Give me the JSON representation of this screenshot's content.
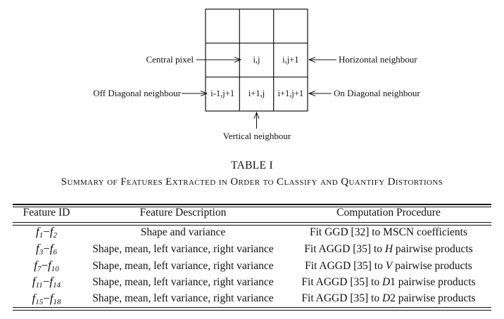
{
  "diagram": {
    "cells": {
      "center": "i,j",
      "horizontal": "i,j+1",
      "off_diagonal": "i-1,j+1",
      "vertical": "i+1,j",
      "on_diagonal": "i+1,j+1"
    },
    "labels": {
      "central_pixel": "Central pixel",
      "horizontal_neighbour": "Horizontal neighbour",
      "off_diagonal_neighbour": "Off Diagonal neighbour",
      "on_diagonal_neighbour": "On Diagonal neighbour",
      "vertical_neighbour": "Vertical neighbour"
    }
  },
  "table": {
    "number": "TABLE I",
    "caption": "Summary of Features Extracted in Order to Classify and Quantify Distortions",
    "headers": [
      "Feature ID",
      "Feature Description",
      "Computation Procedure"
    ],
    "rows": [
      {
        "id": {
          "a": "f",
          "a_sub": "1",
          "sep": "−",
          "b": "f",
          "b_sub": "2"
        },
        "description": "Shape and variance",
        "procedure": {
          "pre": "Fit GGD [32] to MSCN coefficients",
          "var": "",
          "post": ""
        }
      },
      {
        "id": {
          "a": "f",
          "a_sub": "3",
          "sep": "−",
          "b": "f",
          "b_sub": "6"
        },
        "description": "Shape, mean, left variance, right variance",
        "procedure": {
          "pre": "Fit AGGD [35] to ",
          "var": "H",
          "post": " pairwise products"
        }
      },
      {
        "id": {
          "a": "f",
          "a_sub": "7",
          "sep": "−",
          "b": "f",
          "b_sub": "10"
        },
        "description": "Shape, mean, left variance, right variance",
        "procedure": {
          "pre": "Fit AGGD [35] to ",
          "var": "V",
          "post": " pairwise products"
        }
      },
      {
        "id": {
          "a": "f",
          "a_sub": "11",
          "sep": "−",
          "b": "f",
          "b_sub": "14"
        },
        "description": "Shape, mean, left variance, right variance",
        "procedure": {
          "pre": "Fit AGGD [35] to ",
          "var": "D",
          "post": "1 pairwise products"
        }
      },
      {
        "id": {
          "a": "f",
          "a_sub": "15",
          "sep": "−",
          "b": "f",
          "b_sub": "18"
        },
        "description": "Shape, mean, left variance, right variance",
        "procedure": {
          "pre": "Fit AGGD [35] to ",
          "var": "D",
          "post": "2 pairwise products"
        }
      }
    ]
  }
}
